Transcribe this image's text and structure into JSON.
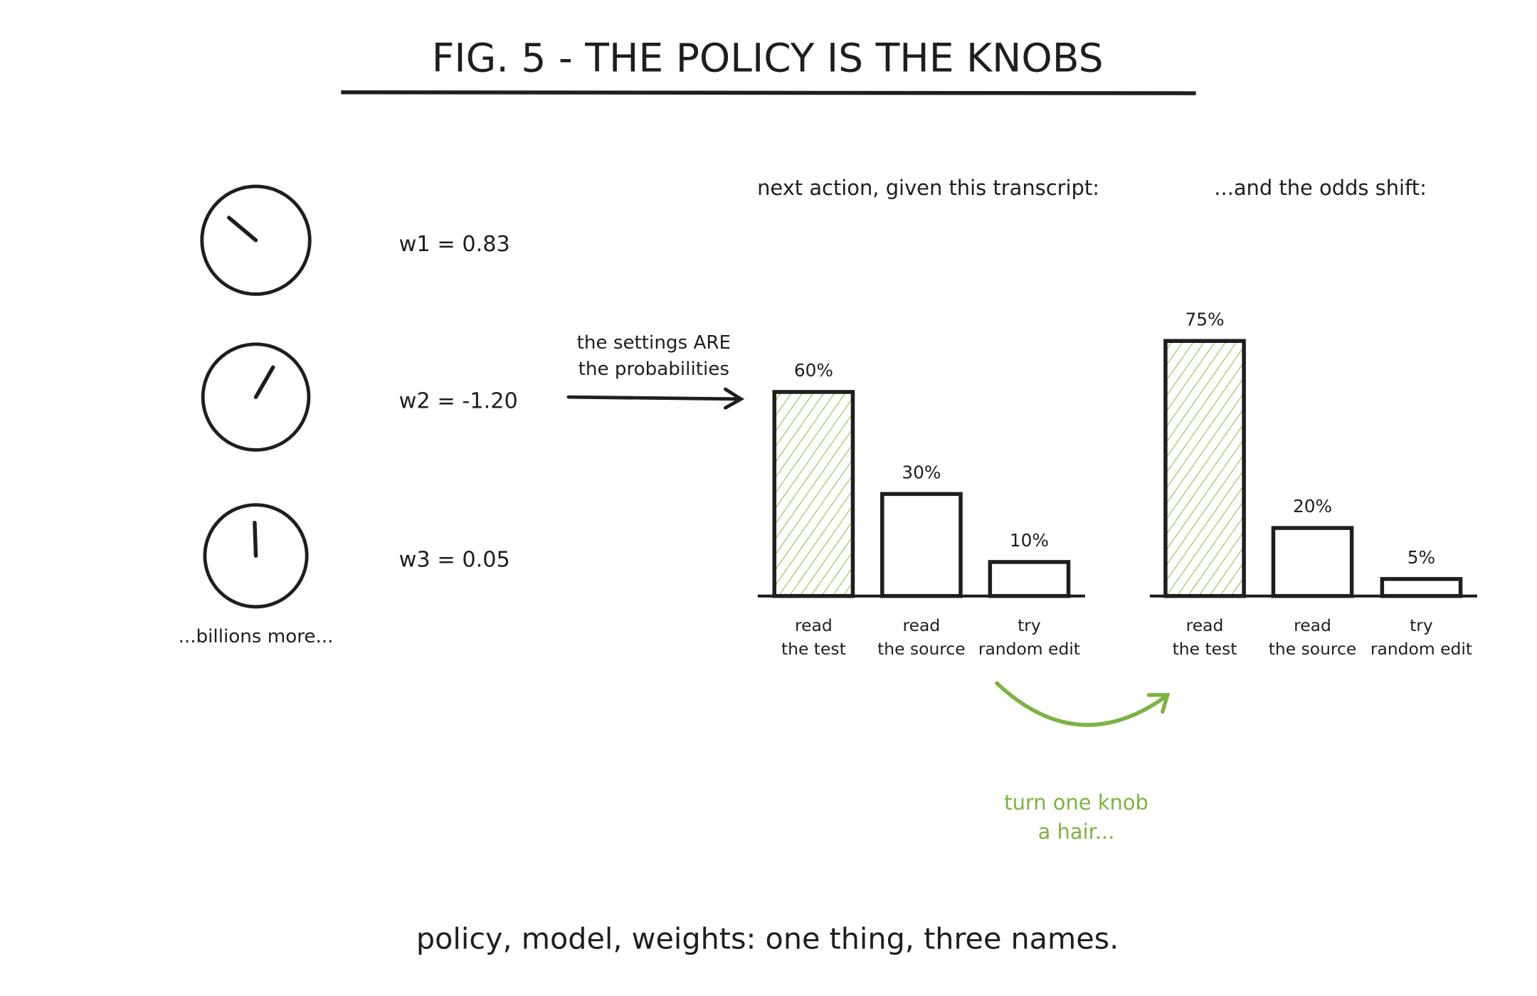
{
  "header": {
    "title": "FIG. 5 - THE POLICY IS THE KNOBS"
  },
  "knobs": {
    "items": [
      {
        "label": "w1 = 0.83"
      },
      {
        "label": "w2 = -1.20"
      },
      {
        "label": "w3 = 0.05"
      }
    ],
    "more": "...billions more..."
  },
  "arrow_note": {
    "lines": [
      "the settings ARE",
      "the probabilities"
    ]
  },
  "change_note": {
    "lines": [
      "turn one knob",
      "a hair..."
    ]
  },
  "footer": {
    "text": "policy, model, weights: one thing, three names."
  },
  "chart_data": [
    {
      "type": "bar",
      "title": "next action, given this transcript:",
      "categories": [
        [
          "read",
          "the test"
        ],
        [
          "read",
          "the source"
        ],
        [
          "try",
          "random edit"
        ]
      ],
      "values": [
        60,
        30,
        10
      ],
      "value_labels": [
        "60%",
        "30%",
        "10%"
      ],
      "bar_colors": [
        "#8bc34a",
        "none",
        "none"
      ]
    },
    {
      "type": "bar",
      "title": "...and the odds shift:",
      "categories": [
        [
          "read",
          "the test"
        ],
        [
          "read",
          "the source"
        ],
        [
          "try",
          "random edit"
        ]
      ],
      "values": [
        75,
        20,
        5
      ],
      "value_labels": [
        "75%",
        "20%",
        "5%"
      ],
      "bar_colors": [
        "#8bc34a",
        "none",
        "none"
      ]
    }
  ]
}
